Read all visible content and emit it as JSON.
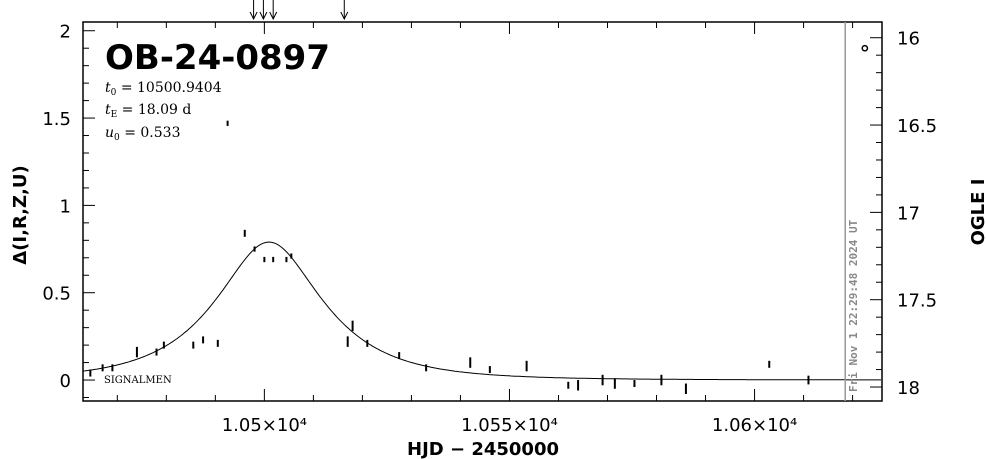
{
  "chart_data": {
    "type": "scatter",
    "title": "OB-24-0897",
    "params": [
      {
        "sym": "t",
        "sub": "0",
        "text": " = 10500.9404"
      },
      {
        "sym": "t",
        "sub": "E",
        "text": " = 18.09  d"
      },
      {
        "sym": "u",
        "sub": "0",
        "text": " = 0.533"
      }
    ],
    "xlabel": "HJD  −  2450000",
    "ylabel_left": "Δ(I,R,Z,U)",
    "ylabel_right": "OGLE I",
    "xlim": [
      10463,
      10626
    ],
    "ylim_left": [
      -0.12,
      2.05
    ],
    "ylim_right": [
      18.08,
      15.91
    ],
    "x_ticks": [
      {
        "value": 10500,
        "label": "1.05×10⁴"
      },
      {
        "value": 10550,
        "label": "1.055×10⁴"
      },
      {
        "value": 10600,
        "label": "1.06×10⁴"
      }
    ],
    "y_ticks_left": [
      {
        "value": 0,
        "label": "0"
      },
      {
        "value": 0.5,
        "label": "0.5"
      },
      {
        "value": 1,
        "label": "1"
      },
      {
        "value": 1.5,
        "label": "1.5"
      },
      {
        "value": 2,
        "label": "2"
      }
    ],
    "y_ticks_right": [
      {
        "value": 16,
        "label": "16"
      },
      {
        "value": 16.5,
        "label": "16.5"
      },
      {
        "value": 17,
        "label": "17"
      },
      {
        "value": 17.5,
        "label": "17.5"
      },
      {
        "value": 18,
        "label": "18"
      }
    ],
    "model": {
      "t0": 10500.9404,
      "tE": 18.09,
      "u0": 0.533
    },
    "points": [
      {
        "x": 10464.5,
        "y": 0.04,
        "e": 0.02
      },
      {
        "x": 10467,
        "y": 0.07,
        "e": 0.02
      },
      {
        "x": 10469,
        "y": 0.07,
        "e": 0.02
      },
      {
        "x": 10474,
        "y": 0.16,
        "e": 0.03
      },
      {
        "x": 10478,
        "y": 0.16,
        "e": 0.02
      },
      {
        "x": 10479.5,
        "y": 0.2,
        "e": 0.02
      },
      {
        "x": 10485.5,
        "y": 0.2,
        "e": 0.02
      },
      {
        "x": 10487.5,
        "y": 0.23,
        "e": 0.02
      },
      {
        "x": 10490.5,
        "y": 0.21,
        "e": 0.02
      },
      {
        "x": 10492.5,
        "y": 1.47,
        "e": 0.015
      },
      {
        "x": 10496,
        "y": 0.84,
        "e": 0.02
      },
      {
        "x": 10498,
        "y": 0.75,
        "e": 0.015
      },
      {
        "x": 10500,
        "y": 0.69,
        "e": 0.015
      },
      {
        "x": 10501.8,
        "y": 0.69,
        "e": 0.015
      },
      {
        "x": 10504.5,
        "y": 0.69,
        "e": 0.015
      },
      {
        "x": 10505.5,
        "y": 0.71,
        "e": 0.015
      },
      {
        "x": 10517,
        "y": 0.22,
        "e": 0.03
      },
      {
        "x": 10518,
        "y": 0.31,
        "e": 0.03
      },
      {
        "x": 10521,
        "y": 0.21,
        "e": 0.02
      },
      {
        "x": 10527.5,
        "y": 0.14,
        "e": 0.02
      },
      {
        "x": 10533,
        "y": 0.07,
        "e": 0.02
      },
      {
        "x": 10542,
        "y": 0.1,
        "e": 0.03
      },
      {
        "x": 10546,
        "y": 0.06,
        "e": 0.02
      },
      {
        "x": 10553.5,
        "y": 0.08,
        "e": 0.03
      },
      {
        "x": 10562,
        "y": -0.03,
        "e": 0.02
      },
      {
        "x": 10564,
        "y": -0.03,
        "e": 0.03
      },
      {
        "x": 10569,
        "y": 0.0,
        "e": 0.03
      },
      {
        "x": 10571.5,
        "y": -0.02,
        "e": 0.03
      },
      {
        "x": 10575.5,
        "y": -0.02,
        "e": 0.02
      },
      {
        "x": 10581,
        "y": 0.0,
        "e": 0.03
      },
      {
        "x": 10586,
        "y": -0.05,
        "e": 0.03
      },
      {
        "x": 10603,
        "y": 0.09,
        "e": 0.02
      },
      {
        "x": 10611,
        "y": 0.0,
        "e": 0.025
      }
    ],
    "ogle_point": {
      "x": 10622.5,
      "y": 1.9
    },
    "arrows_x": [
      10497.8,
      10499.8,
      10501.8,
      10516.3
    ],
    "vline": {
      "x": 10618.5,
      "label": "Fri Nov  1 22:29:48 2024 UT"
    },
    "corner_label": "SIGNALMEN"
  }
}
